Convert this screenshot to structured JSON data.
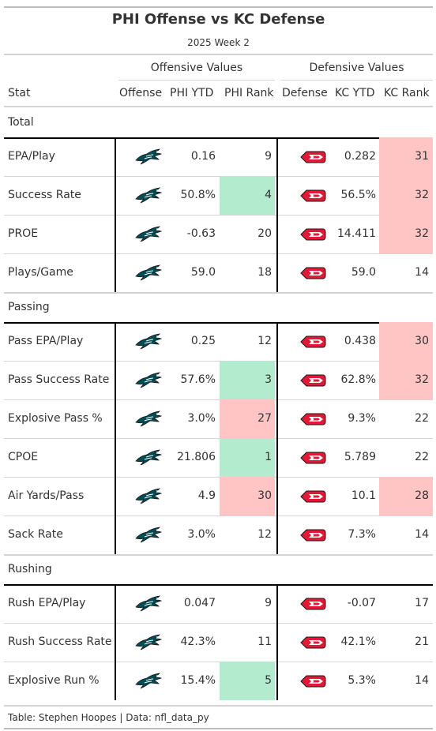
{
  "header": {
    "title": "PHI Offense vs KC Defense",
    "subtitle": "2025 Week 2"
  },
  "spanners": {
    "offense": "Offensive Values",
    "defense": "Defensive Values"
  },
  "columns": {
    "stat": "Stat",
    "offense": "Offense",
    "phi_ytd": "PHI YTD",
    "phi_rank": "PHI Rank",
    "defense": "Defense",
    "kc_ytd": "KC YTD",
    "kc_rank": "KC Rank"
  },
  "logos": {
    "offense_icon": "eagles-logo-icon",
    "defense_icon": "chiefs-logo-icon"
  },
  "colors": {
    "good": "#b3ebcf",
    "bad": "#ffc4c4",
    "eagles_green": "#004c54",
    "chiefs_red": "#e31837"
  },
  "groups": [
    {
      "label": "Total",
      "rows": [
        {
          "stat": "EPA/Play",
          "phi_ytd": "0.16",
          "phi_rank": "9",
          "phi_flag": "none",
          "kc_ytd": "0.282",
          "kc_rank": "31",
          "kc_flag": "bad"
        },
        {
          "stat": "Success Rate",
          "phi_ytd": "50.8%",
          "phi_rank": "4",
          "phi_flag": "good",
          "kc_ytd": "56.5%",
          "kc_rank": "32",
          "kc_flag": "bad"
        },
        {
          "stat": "PROE",
          "phi_ytd": "-0.63",
          "phi_rank": "20",
          "phi_flag": "none",
          "kc_ytd": "14.411",
          "kc_rank": "32",
          "kc_flag": "bad"
        },
        {
          "stat": "Plays/Game",
          "phi_ytd": "59.0",
          "phi_rank": "18",
          "phi_flag": "none",
          "kc_ytd": "59.0",
          "kc_rank": "14",
          "kc_flag": "none"
        }
      ]
    },
    {
      "label": "Passing",
      "rows": [
        {
          "stat": "Pass EPA/Play",
          "phi_ytd": "0.25",
          "phi_rank": "12",
          "phi_flag": "none",
          "kc_ytd": "0.438",
          "kc_rank": "30",
          "kc_flag": "bad"
        },
        {
          "stat": "Pass Success Rate",
          "phi_ytd": "57.6%",
          "phi_rank": "3",
          "phi_flag": "good",
          "kc_ytd": "62.8%",
          "kc_rank": "32",
          "kc_flag": "bad"
        },
        {
          "stat": "Explosive Pass %",
          "phi_ytd": "3.0%",
          "phi_rank": "27",
          "phi_flag": "bad",
          "kc_ytd": "9.3%",
          "kc_rank": "22",
          "kc_flag": "none"
        },
        {
          "stat": "CPOE",
          "phi_ytd": "21.806",
          "phi_rank": "1",
          "phi_flag": "good",
          "kc_ytd": "5.789",
          "kc_rank": "22",
          "kc_flag": "none"
        },
        {
          "stat": "Air Yards/Pass",
          "phi_ytd": "4.9",
          "phi_rank": "30",
          "phi_flag": "bad",
          "kc_ytd": "10.1",
          "kc_rank": "28",
          "kc_flag": "bad"
        },
        {
          "stat": "Sack Rate",
          "phi_ytd": "3.0%",
          "phi_rank": "12",
          "phi_flag": "none",
          "kc_ytd": "7.3%",
          "kc_rank": "14",
          "kc_flag": "none"
        }
      ]
    },
    {
      "label": "Rushing",
      "rows": [
        {
          "stat": "Rush EPA/Play",
          "phi_ytd": "0.047",
          "phi_rank": "9",
          "phi_flag": "none",
          "kc_ytd": "-0.07",
          "kc_rank": "17",
          "kc_flag": "none"
        },
        {
          "stat": "Rush Success Rate",
          "phi_ytd": "42.3%",
          "phi_rank": "11",
          "phi_flag": "none",
          "kc_ytd": "42.1%",
          "kc_rank": "21",
          "kc_flag": "none"
        },
        {
          "stat": "Explosive Run %",
          "phi_ytd": "15.4%",
          "phi_rank": "5",
          "phi_flag": "good",
          "kc_ytd": "5.3%",
          "kc_rank": "14",
          "kc_flag": "none"
        }
      ]
    }
  ],
  "footer": {
    "source": "Table: Stephen Hoopes | Data: nfl_data_py"
  }
}
